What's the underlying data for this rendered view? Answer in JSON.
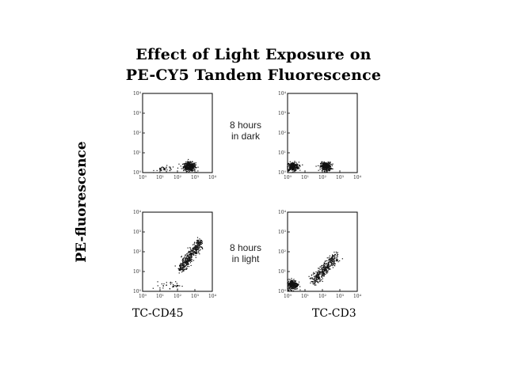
{
  "title": {
    "line1": "Effect of Light Exposure on",
    "line2": "PE-CY5 Tandem Fluorescence"
  },
  "ylabel": "PE-fluorescence",
  "conditions": {
    "dark": [
      "8 hours",
      "in dark"
    ],
    "light": [
      "8 hours",
      "in light"
    ]
  },
  "xlabels": {
    "left": "TC-CD45",
    "right": "TC-CD3"
  },
  "chart_data": [
    {
      "type": "scatter",
      "panel": "top-left",
      "xscale": "log",
      "yscale": "log",
      "xlim": [
        1,
        10000
      ],
      "ylim": [
        1,
        10000
      ],
      "x_tick_labels": [
        "10⁰",
        "10¹",
        "10²",
        "10³",
        "10⁴"
      ],
      "y_tick_labels": [
        "10⁰",
        "10¹",
        "10²",
        "10³",
        "10⁴"
      ],
      "clusters": [
        {
          "x_center": 500,
          "y_center": 2,
          "x_spread": 0.35,
          "y_spread": 0.22,
          "n": 420
        },
        {
          "x_center": 20,
          "y_center": 1.5,
          "x_spread": 0.6,
          "y_spread": 0.15,
          "n": 40
        }
      ]
    },
    {
      "type": "scatter",
      "panel": "top-right",
      "xscale": "log",
      "yscale": "log",
      "xlim": [
        1,
        10000
      ],
      "ylim": [
        1,
        10000
      ],
      "x_tick_labels": [
        "10⁰",
        "10¹",
        "10²",
        "10³",
        "10⁴"
      ],
      "y_tick_labels": [
        "10⁰",
        "10¹",
        "10²",
        "10³",
        "10⁴"
      ],
      "clusters": [
        {
          "x_center": 2,
          "y_center": 2,
          "x_spread": 0.35,
          "y_spread": 0.22,
          "n": 300
        },
        {
          "x_center": 160,
          "y_center": 2,
          "x_spread": 0.3,
          "y_spread": 0.22,
          "n": 330
        }
      ]
    },
    {
      "type": "scatter",
      "panel": "bottom-left",
      "xscale": "log",
      "yscale": "log",
      "xlim": [
        1,
        10000
      ],
      "ylim": [
        1,
        10000
      ],
      "x_tick_labels": [
        "10⁰",
        "10¹",
        "10²",
        "10³",
        "10⁴"
      ],
      "y_tick_labels": [
        "10⁰",
        "10¹",
        "10²",
        "10³",
        "10⁴"
      ],
      "clusters": [
        {
          "diagonal": true,
          "x_from": 150,
          "x_to": 2000,
          "y_from": 12,
          "y_to": 300,
          "width": 0.12,
          "n": 420
        },
        {
          "x_center": 40,
          "y_center": 2,
          "x_spread": 0.6,
          "y_spread": 0.2,
          "n": 35
        }
      ]
    },
    {
      "type": "scatter",
      "panel": "bottom-right",
      "xscale": "log",
      "yscale": "log",
      "xlim": [
        1,
        10000
      ],
      "ylim": [
        1,
        10000
      ],
      "x_tick_labels": [
        "10⁰",
        "10¹",
        "10²",
        "10³",
        "10⁴"
      ],
      "y_tick_labels": [
        "10⁰",
        "10¹",
        "10²",
        "10³",
        "10⁴"
      ],
      "clusters": [
        {
          "x_center": 2,
          "y_center": 2.2,
          "x_spread": 0.3,
          "y_spread": 0.25,
          "n": 300
        },
        {
          "diagonal": true,
          "x_from": 30,
          "x_to": 600,
          "y_from": 3,
          "y_to": 60,
          "width": 0.13,
          "n": 380
        }
      ]
    }
  ]
}
